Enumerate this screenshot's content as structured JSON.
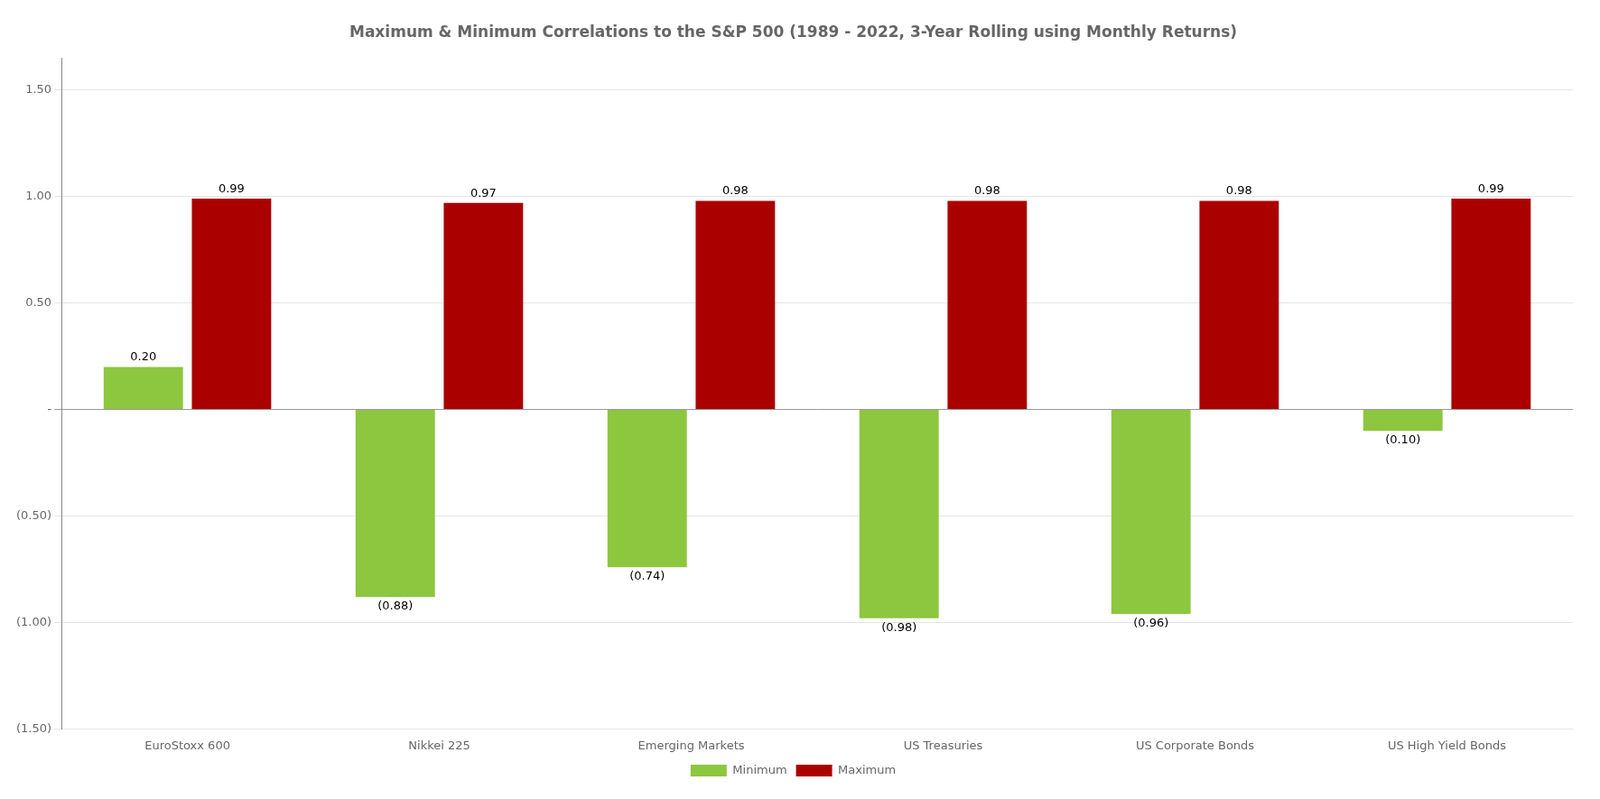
{
  "chart_data": {
    "type": "bar",
    "title": "Maximum & Minimum Correlations to the S&P 500 (1989 - 2022, 3-Year Rolling using Monthly Returns)",
    "categories": [
      "EuroStoxx 600",
      "Nikkei 225",
      "Emerging Markets",
      "US Treasuries",
      "US Corporate Bonds",
      "US High Yield Bonds"
    ],
    "series": [
      {
        "name": "Minimum",
        "color": "#8DC63F",
        "values": [
          0.2,
          -0.88,
          -0.74,
          -0.98,
          -0.96,
          -0.1
        ],
        "value_labels": [
          "0.20",
          "(0.88)",
          "(0.74)",
          "(0.98)",
          "(0.96)",
          "(0.10)"
        ]
      },
      {
        "name": "Maximum",
        "color": "#AA0000",
        "values": [
          0.99,
          0.97,
          0.98,
          0.98,
          0.98,
          0.99
        ]
      }
    ],
    "ylim": [
      -1.5,
      1.65
    ],
    "yticks": [
      {
        "value": -1.5,
        "label": "(1.50)"
      },
      {
        "value": -1.0,
        "label": "(1.00)"
      },
      {
        "value": -0.5,
        "label": "(0.50)"
      },
      {
        "value": 0.0,
        "label": "-"
      },
      {
        "value": 0.5,
        "label": "0.50"
      },
      {
        "value": 1.0,
        "label": "1.00"
      },
      {
        "value": 1.5,
        "label": "1.50"
      }
    ],
    "grid": true,
    "legend": "bottom",
    "data_labels": true
  }
}
